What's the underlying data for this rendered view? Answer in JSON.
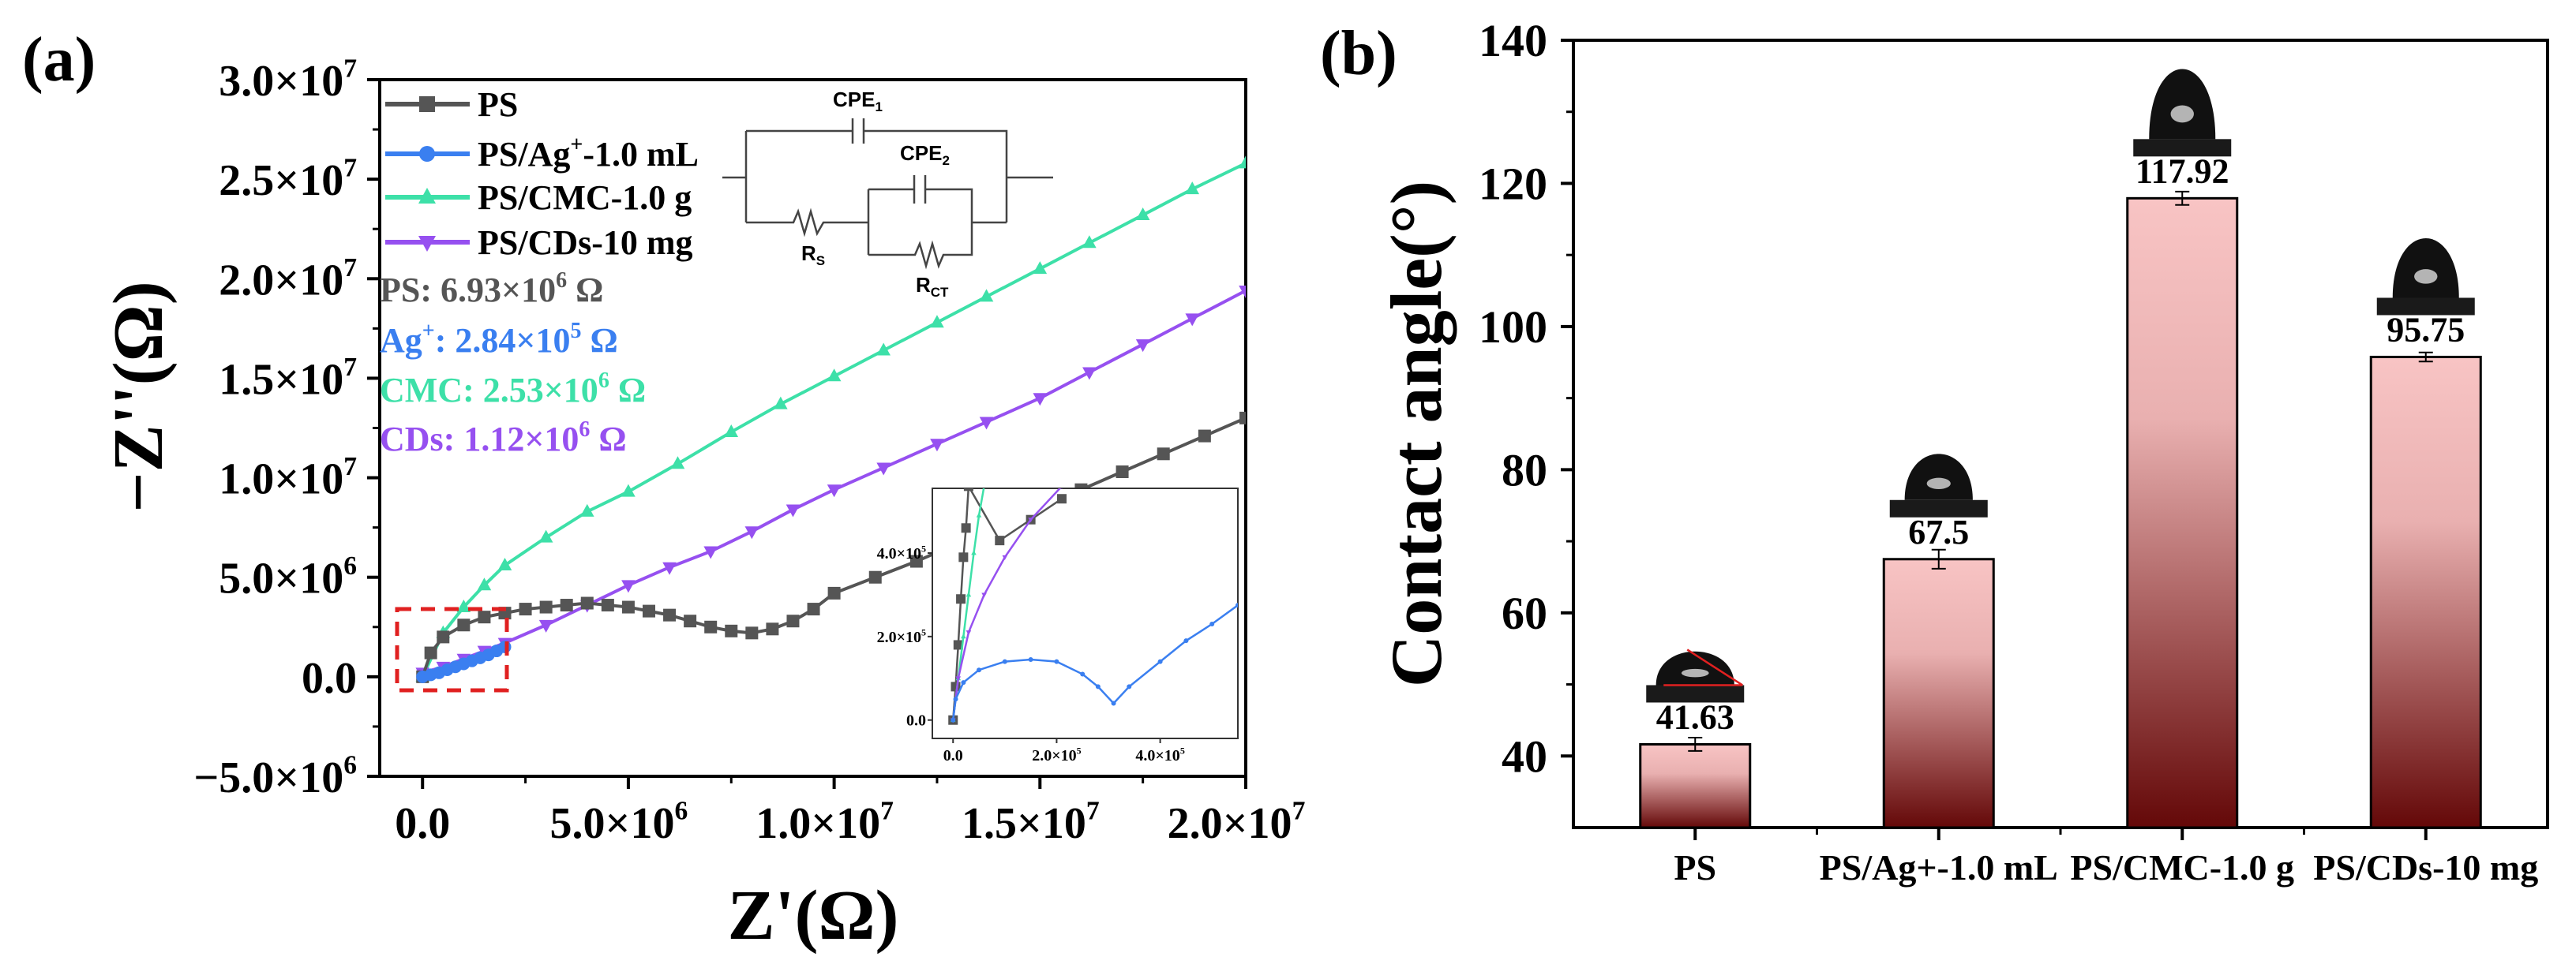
{
  "chart_data": [
    {
      "type": "line",
      "panel_label": "(a)",
      "xlabel": "Z'(Ω)",
      "ylabel": "−Z''(Ω)",
      "xlim": [
        -1040000,
        20000000
      ],
      "ylim": [
        -5000000,
        30000000
      ],
      "x_ticks": [
        0,
        5000000,
        10000000,
        15000000,
        20000000
      ],
      "x_tick_labels": [
        "0.0",
        "5.0×10",
        "1.0×10",
        "1.5×10",
        "2.0×10"
      ],
      "x_tick_exps": [
        "",
        "6",
        "7",
        "7",
        "7"
      ],
      "y_ticks": [
        30000000,
        25000000,
        20000000,
        15000000,
        10000000,
        5000000,
        0,
        -5000000
      ],
      "y_tick_labels": [
        "3.0×10",
        "2.5×10",
        "2.0×10",
        "1.5×10",
        "1.0×10",
        "5.0×10",
        "0.0",
        "−5.0×10"
      ],
      "y_tick_exps": [
        "7",
        "7",
        "7",
        "7",
        "7",
        "6",
        "",
        "6"
      ],
      "legend_position": "top-left",
      "series": [
        {
          "name": "PS",
          "color": "#555555",
          "marker": "square",
          "x": [
            0,
            0.2,
            0.5,
            1,
            1.5,
            2,
            2.5,
            3,
            3.5,
            4,
            4.5,
            5,
            5.5,
            6,
            6.5,
            7,
            7.5,
            8,
            8.5,
            9,
            9.5,
            10,
            11,
            12,
            13,
            14,
            15,
            16,
            17,
            18,
            19,
            20
          ],
          "y": [
            0,
            1.2,
            2,
            2.6,
            3,
            3.2,
            3.4,
            3.5,
            3.6,
            3.7,
            3.6,
            3.5,
            3.3,
            3.1,
            2.8,
            2.5,
            2.3,
            2.2,
            2.4,
            2.8,
            3.4,
            4.2,
            5.0,
            5.8,
            6.7,
            7.5,
            8.4,
            9.4,
            10.3,
            11.2,
            12.1,
            13.0
          ],
          "unit_multiplier": 1000000
        },
        {
          "name": "PS/Ag⁺-1.0 mL",
          "legend_main": "PS/Ag",
          "legend_sup": "+",
          "legend_tail": "-1.0 mL",
          "color": "#3a7ff0",
          "marker": "circle",
          "x": [
            0,
            0.2,
            0.4,
            0.6,
            0.8,
            1.0,
            1.2,
            1.4,
            1.6,
            1.8,
            2.0
          ],
          "y": [
            0,
            0.1,
            0.2,
            0.35,
            0.5,
            0.65,
            0.8,
            0.95,
            1.1,
            1.3,
            1.5
          ],
          "unit_multiplier": 1000000
        },
        {
          "name": "PS/CMC-1.0 g",
          "color": "#3de0a8",
          "marker": "triangle-up",
          "x": [
            0,
            0.5,
            1,
            1.5,
            2,
            3,
            4,
            5,
            6.2,
            7.5,
            8.7,
            10,
            11.2,
            12.5,
            13.7,
            15,
            16.2,
            17.5,
            18.7,
            20
          ],
          "y": [
            0,
            2.2,
            3.5,
            4.6,
            5.6,
            7.0,
            8.3,
            9.3,
            10.7,
            12.3,
            13.7,
            15.1,
            16.4,
            17.8,
            19.1,
            20.5,
            21.8,
            23.2,
            24.5,
            25.8
          ],
          "unit_multiplier": 1000000
        },
        {
          "name": "PS/CDs-10 mg",
          "color": "#9650f0",
          "marker": "triangle-down",
          "x": [
            0,
            0.5,
            1,
            1.5,
            2,
            3,
            4,
            5,
            6,
            7,
            8,
            9,
            10,
            11.2,
            12.5,
            13.7,
            15,
            16.2,
            17.5,
            18.7,
            20
          ],
          "y": [
            0.2,
            0.5,
            0.9,
            1.3,
            1.7,
            2.6,
            3.6,
            4.6,
            5.5,
            6.3,
            7.3,
            8.4,
            9.4,
            10.5,
            11.7,
            12.8,
            14.0,
            15.3,
            16.7,
            18.0,
            19.4
          ],
          "unit_multiplier": 1000000
        }
      ],
      "annotations": [
        {
          "label": "PS: 6.93×10",
          "exp": "6",
          "unit": " Ω",
          "color": "#555555"
        },
        {
          "label": "Ag",
          "sup": "+",
          "rest": ": 2.84×10",
          "exp": "5",
          "unit": " Ω",
          "color": "#3a7ff0"
        },
        {
          "label": "CMC: 2.53×10",
          "exp": "6",
          "unit": " Ω",
          "color": "#3de0a8"
        },
        {
          "label": "CDs: 1.12×10",
          "exp": "6",
          "unit": " Ω",
          "color": "#9650f0"
        }
      ],
      "circuit": {
        "cpe1": "CPE",
        "cpe1_sub": "1",
        "cpe2": "CPE",
        "cpe2_sub": "2",
        "rs": "R",
        "rs_sub": "S",
        "rct": "R",
        "rct_sub": "CT"
      },
      "inset": {
        "xlim": [
          -40000,
          550000
        ],
        "ylim": [
          -44000,
          555000
        ],
        "x_ticks": [
          0,
          200000,
          400000
        ],
        "x_tick_labels": [
          "0.0",
          "2.0×10",
          "4.0×10"
        ],
        "x_tick_exps": [
          "",
          "5",
          "5"
        ],
        "y_ticks": [
          0,
          200000,
          400000
        ],
        "y_tick_labels": [
          "0.0",
          "2.0×10",
          "4.0×10"
        ],
        "y_tick_exps": [
          "",
          "5",
          "5"
        ],
        "unit_multiplier": 100000,
        "series": [
          {
            "name": "PS",
            "x": [
              0,
              0.05,
              0.1,
              0.15,
              0.2,
              0.25,
              0.3,
              0.9,
              1.5,
              2.1
            ],
            "y": [
              0,
              0.8,
              1.8,
              2.9,
              3.9,
              4.6,
              5.6,
              4.3,
              4.8,
              5.3
            ]
          },
          {
            "name": "PS/CMC-1.0 g",
            "x": [
              0,
              0.1,
              0.2,
              0.3,
              0.4,
              0.5,
              0.6
            ],
            "y": [
              0,
              1.0,
              2.0,
              3.0,
              4.0,
              4.9,
              5.6
            ]
          },
          {
            "name": "PS/CDs-10 mg",
            "x": [
              0,
              0.1,
              0.3,
              0.6,
              1.0,
              1.5,
              2.1
            ],
            "y": [
              0,
              1.0,
              2.1,
              3.0,
              3.9,
              4.8,
              5.6
            ]
          },
          {
            "name": "PS/Ag⁺-1.0 mL",
            "x": [
              0,
              0.05,
              0.2,
              0.5,
              1,
              1.5,
              2,
              2.5,
              2.8,
              3.1,
              3.4,
              4,
              4.5,
              5,
              5.5
            ],
            "y": [
              0,
              0.5,
              0.9,
              1.2,
              1.4,
              1.45,
              1.4,
              1.1,
              0.8,
              0.4,
              0.8,
              1.4,
              1.9,
              2.3,
              2.75
            ]
          }
        ]
      }
    },
    {
      "type": "bar",
      "panel_label": "(b)",
      "ylabel": "Contact angle(°)",
      "xlabel": "",
      "ylim": [
        30,
        140
      ],
      "y_ticks": [
        40,
        60,
        80,
        100,
        120,
        140
      ],
      "y_tick_labels": [
        "40",
        "60",
        "80",
        "100",
        "120",
        "140"
      ],
      "categories": [
        "PS",
        "PS/Ag+-1.0 mL",
        "PS/CMC-1.0 g",
        "PS/CDs-10 mg"
      ],
      "values": [
        41.63,
        67.5,
        117.92,
        95.75
      ],
      "value_labels": [
        "41.63",
        "67.5",
        "117.92",
        "95.75"
      ],
      "errors": [
        0.6,
        1.0,
        0.6,
        0.3
      ],
      "bar_gradient": [
        "#f8c4c4",
        "#640808"
      ]
    }
  ]
}
